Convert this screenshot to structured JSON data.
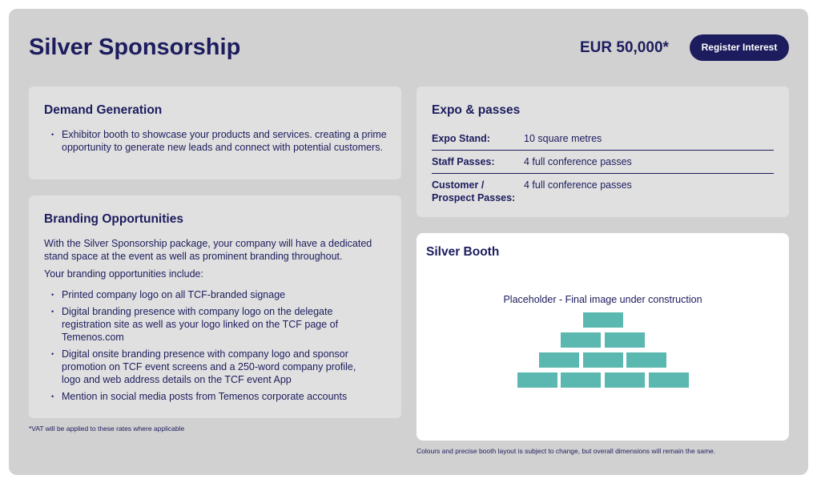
{
  "header": {
    "title": "Silver Sponsorship",
    "price": "EUR 50,000*",
    "button": "Register Interest"
  },
  "demand_generation": {
    "title": "Demand Generation",
    "items": [
      "Exhibitor booth to showcase your products and services. creating a prime opportunity to generate new leads and connect with potential customers."
    ]
  },
  "branding": {
    "title": "Branding Opportunities",
    "intro": [
      "With the Silver Sponsorship package, your company will have a dedicated stand space at the event as well as prominent branding throughout.",
      "Your branding opportunities include:"
    ],
    "items": [
      "Printed company logo on all TCF-branded signage",
      "Digital branding presence with company logo on the delegate registration site as well as your logo linked on the TCF page of Temenos.com",
      "Digital onsite branding presence with company logo and sponsor promotion on TCF event screens and a 250-word company profile, logo and web address details on the TCF event App",
      "Mention in social media posts from Temenos corporate accounts"
    ]
  },
  "vat_note": "*VAT will be applied to these rates where applicable",
  "expo": {
    "title": "Expo & passes",
    "rows": [
      [
        "Expo Stand:",
        "10 square metres"
      ],
      [
        "Staff Passes:",
        "4 full conference passes"
      ],
      [
        "Customer / Prospect Passes:",
        "4 full conference passes"
      ]
    ]
  },
  "booth": {
    "title": "Silver Booth",
    "placeholder": "Placeholder  - Final image under construction",
    "note": "Colours and precise booth layout is subject to change, but overall dimensions will remain the same."
  }
}
